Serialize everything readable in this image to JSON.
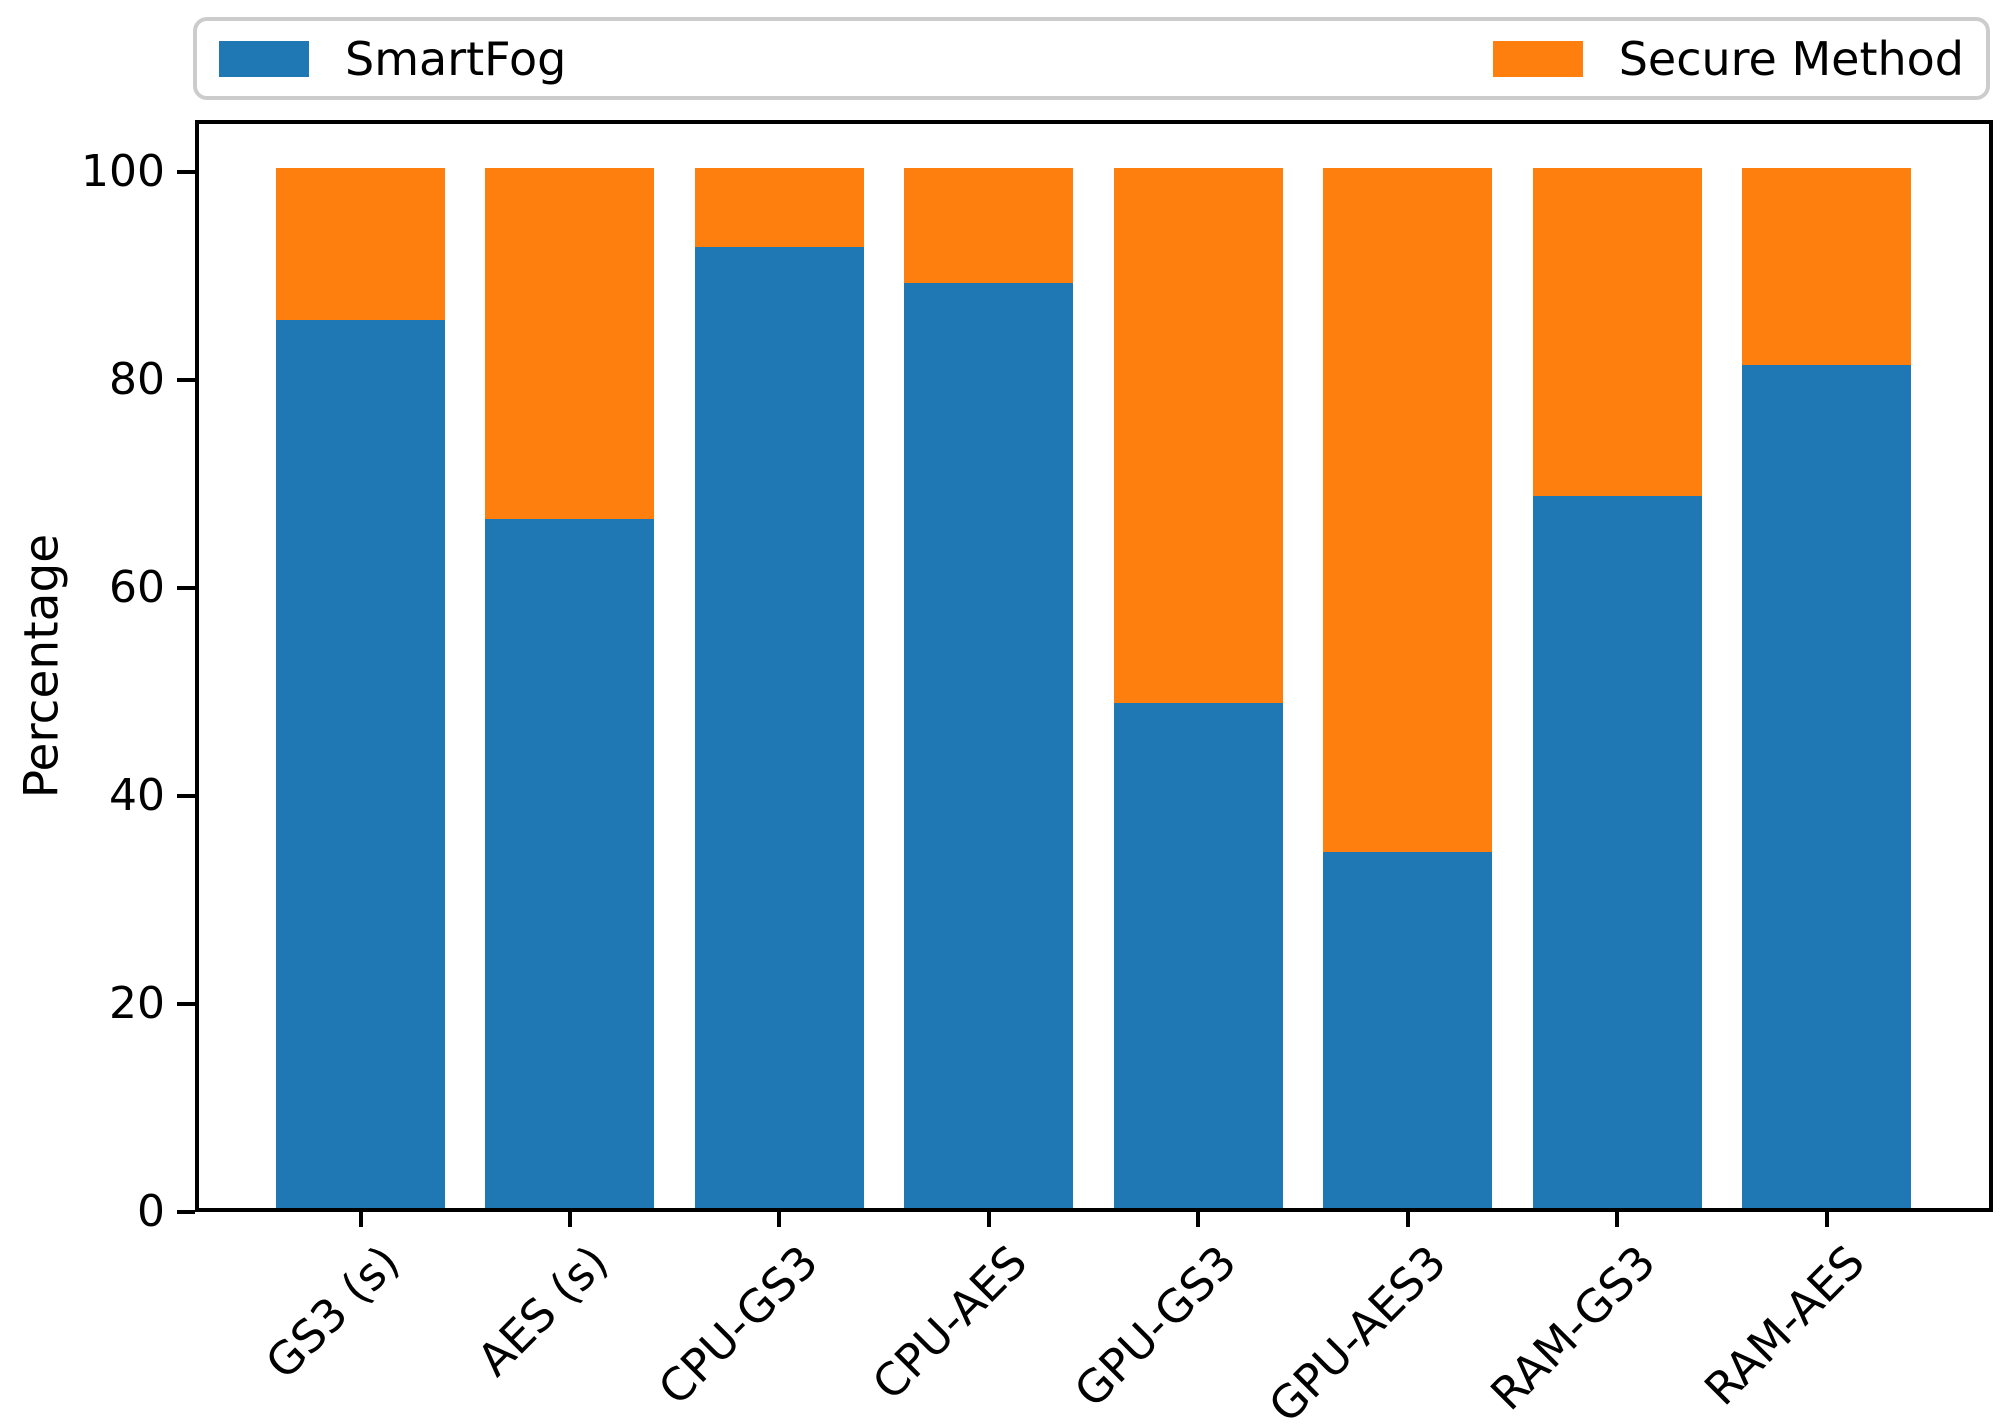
{
  "legend": {
    "entries": [
      {
        "label": "SmartFog",
        "color": "#1f77b4"
      },
      {
        "label": "Secure Method",
        "color": "#ff7f0e"
      }
    ]
  },
  "chart_data": {
    "type": "bar",
    "stacked": true,
    "title": "",
    "xlabel": "",
    "ylabel": "Percentage",
    "categories": [
      "GS3 (s)",
      "AES (s)",
      "CPU-GS3",
      "CPU-AES",
      "GPU-GS3",
      "GPU-AES3",
      "RAM-GS3",
      "RAM-AES"
    ],
    "series": [
      {
        "name": "SmartFog",
        "color": "#1f77b4",
        "values": [
          85.4,
          66.3,
          92.4,
          89.0,
          48.6,
          34.2,
          68.5,
          81.1
        ]
      },
      {
        "name": "Secure Method",
        "color": "#ff7f0e",
        "values": [
          14.6,
          33.7,
          7.6,
          11.0,
          51.4,
          65.8,
          31.5,
          18.9
        ]
      }
    ],
    "yticks": [
      0,
      20,
      40,
      60,
      80,
      100
    ],
    "ylim": [
      0,
      105
    ],
    "grid": false,
    "legend_position": "top, two columns (left and right)",
    "x_tick_label_rotation": 45
  }
}
